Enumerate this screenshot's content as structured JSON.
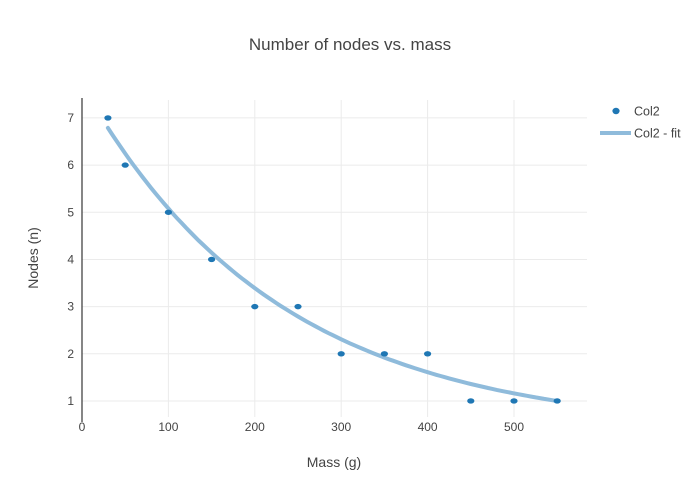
{
  "chart_data": {
    "type": "scatter",
    "title": "Number of nodes vs. mass",
    "grid": true,
    "legend_position": "right-top-outside",
    "x_axis": {
      "label": "Mass (g)",
      "range": [
        0,
        584.5
      ],
      "ticks": [
        0,
        100,
        200,
        300,
        400,
        500
      ],
      "zeroline": true
    },
    "y_axis": {
      "label": "Nodes (n)",
      "range": [
        0.66,
        7.38
      ],
      "ticks": [
        1,
        2,
        3,
        4,
        5,
        6,
        7
      ]
    },
    "series": [
      {
        "name": "Col2",
        "kind": "scatter",
        "color": "#1f77b4",
        "points": [
          [
            30,
            7
          ],
          [
            50,
            6
          ],
          [
            100,
            5
          ],
          [
            150,
            4
          ],
          [
            200,
            3
          ],
          [
            250,
            3
          ],
          [
            300,
            2
          ],
          [
            350,
            2
          ],
          [
            400,
            2
          ],
          [
            450,
            1
          ],
          [
            500,
            1
          ],
          [
            550,
            1
          ]
        ]
      },
      {
        "name": "Col2 - fit",
        "kind": "line",
        "color": "#8fbbdb",
        "fit_model": {
          "type": "exp_offset",
          "a": 7.35,
          "b": 0.00441,
          "c": 0.35
        },
        "x_start": 30,
        "x_end": 550
      }
    ],
    "colors": {
      "grid": "#ebebeb",
      "axis_line": "#444444",
      "text": "#444444"
    }
  }
}
